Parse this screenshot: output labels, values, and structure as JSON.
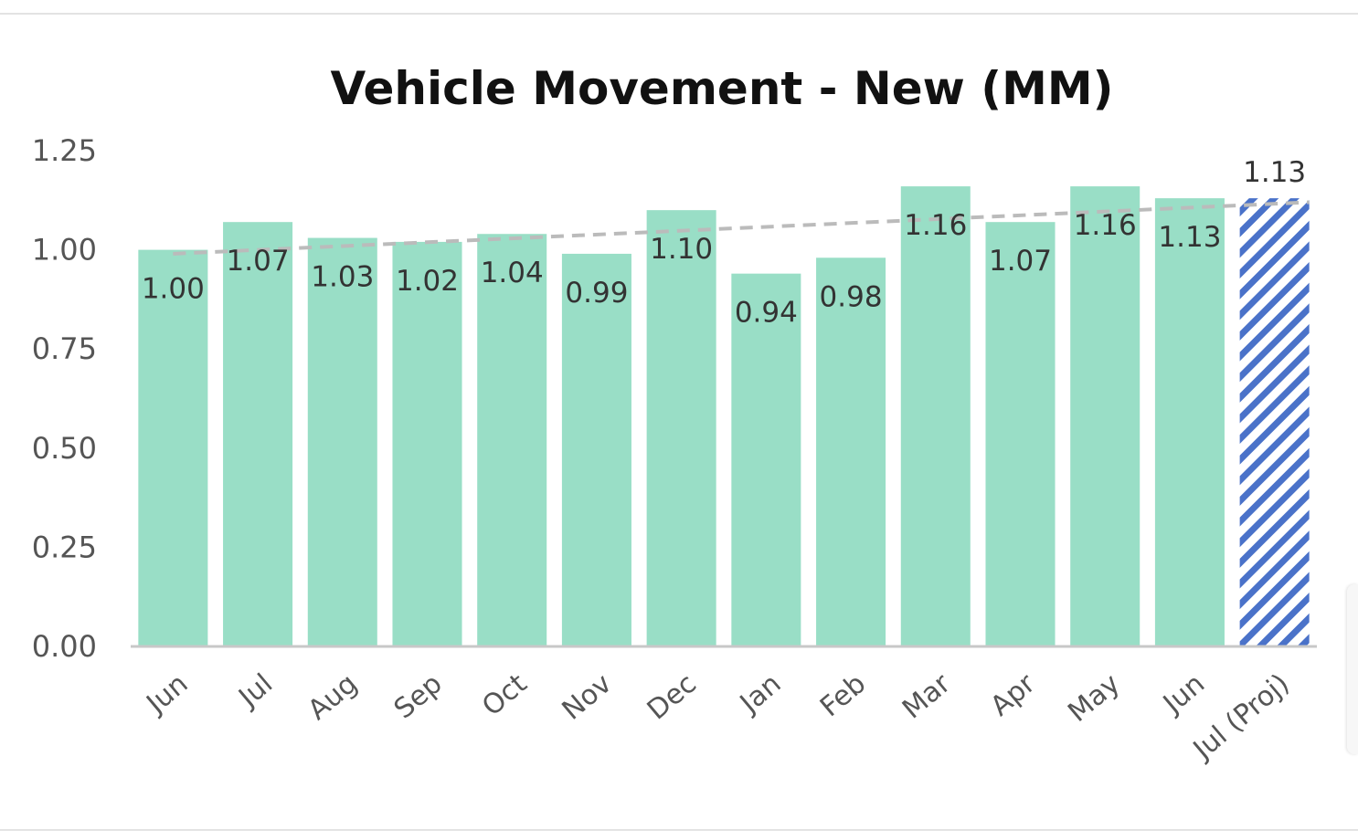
{
  "chart_data": {
    "type": "bar",
    "title": "Vehicle Movement - New (MM)",
    "xlabel": "",
    "ylabel": "",
    "ylim": [
      0,
      1.25
    ],
    "yticks": [
      "0.00",
      "0.25",
      "0.50",
      "0.75",
      "1.00",
      "1.25"
    ],
    "categories": [
      "Jun",
      "Jul",
      "Aug",
      "Sep",
      "Oct",
      "Nov",
      "Dec",
      "Jan",
      "Feb",
      "Mar",
      "Apr",
      "May",
      "Jun",
      "Jul (Proj)"
    ],
    "values": [
      1.0,
      1.07,
      1.03,
      1.02,
      1.04,
      0.99,
      1.1,
      0.94,
      0.98,
      1.16,
      1.07,
      1.16,
      1.13,
      1.13
    ],
    "value_labels": [
      "1.00",
      "1.07",
      "1.03",
      "1.02",
      "1.04",
      "0.99",
      "1.10",
      "0.94",
      "0.98",
      "1.16",
      "1.07",
      "1.16",
      "1.13",
      "1.13"
    ],
    "projected_index": 13,
    "trendline": {
      "style": "dashed",
      "start": 0.99,
      "end": 1.12
    },
    "grid": false,
    "legend": "none",
    "colors": {
      "bar": "#99dec6",
      "projected": "#4a72c9",
      "trend": "#bbbbbb",
      "axis": "#c8c8c8"
    }
  }
}
